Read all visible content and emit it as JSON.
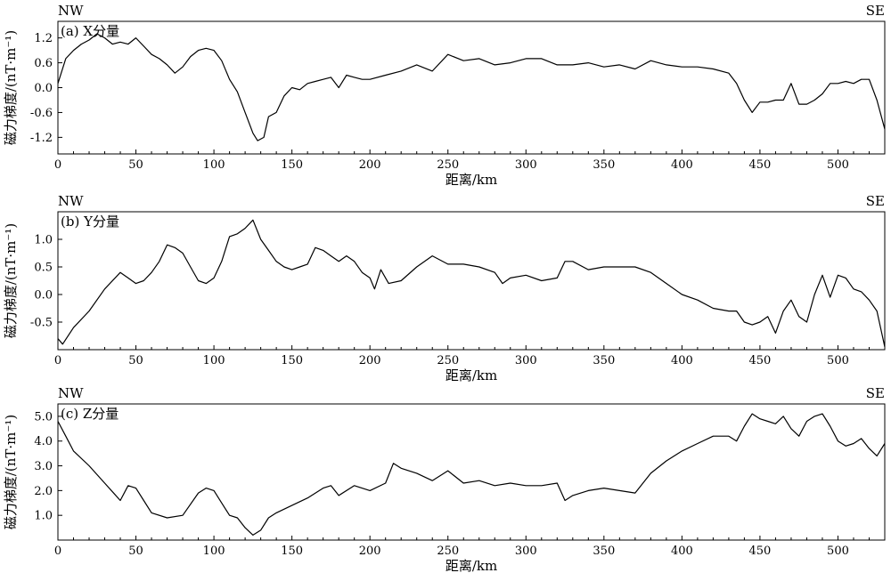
{
  "chart_data": [
    {
      "type": "line",
      "panel_label": "(a) X分量",
      "left_corner": "NW",
      "right_corner": "SE",
      "xlabel": "距离/km",
      "ylabel": "磁力梯度/(nT·m⁻¹)",
      "xlim": [
        0,
        530
      ],
      "ylim": [
        -1.6,
        1.6
      ],
      "xticks": [
        0,
        50,
        100,
        150,
        200,
        250,
        300,
        350,
        400,
        450,
        500
      ],
      "xtick_labels": [
        "0",
        "50",
        "100",
        "150",
        "200",
        "250",
        "300",
        "350",
        "400",
        "450",
        "500"
      ],
      "yticks": [
        -1.2,
        -0.6,
        0.0,
        0.6,
        1.2
      ],
      "ytick_labels": [
        "-1.2",
        "-0.6",
        "0.0",
        "0.6",
        "1.2"
      ],
      "line_color": "#000000",
      "series": [
        {
          "x": [
            0,
            5,
            10,
            15,
            20,
            25,
            30,
            35,
            40,
            45,
            50,
            55,
            60,
            65,
            70,
            75,
            80,
            85,
            90,
            95,
            100,
            105,
            110,
            115,
            120,
            125,
            128,
            132,
            135,
            140,
            145,
            150,
            155,
            160,
            165,
            170,
            175,
            180,
            185,
            190,
            195,
            200,
            210,
            220,
            230,
            240,
            250,
            260,
            270,
            280,
            290,
            300,
            310,
            320,
            330,
            340,
            350,
            360,
            370,
            380,
            390,
            400,
            410,
            420,
            430,
            435,
            440,
            445,
            450,
            455,
            460,
            465,
            470,
            475,
            480,
            485,
            490,
            495,
            500,
            505,
            510,
            515,
            520,
            525,
            530
          ],
          "y": [
            0.1,
            0.7,
            0.9,
            1.05,
            1.15,
            1.3,
            1.2,
            1.05,
            1.1,
            1.05,
            1.2,
            1.0,
            0.8,
            0.7,
            0.55,
            0.35,
            0.5,
            0.75,
            0.9,
            0.95,
            0.9,
            0.65,
            0.2,
            -0.1,
            -0.6,
            -1.1,
            -1.28,
            -1.2,
            -0.7,
            -0.6,
            -0.2,
            0.0,
            -0.05,
            0.1,
            0.15,
            0.2,
            0.25,
            0.0,
            0.3,
            0.25,
            0.2,
            0.2,
            0.3,
            0.4,
            0.55,
            0.4,
            0.8,
            0.65,
            0.7,
            0.55,
            0.6,
            0.7,
            0.7,
            0.55,
            0.55,
            0.6,
            0.5,
            0.55,
            0.45,
            0.65,
            0.55,
            0.5,
            0.5,
            0.45,
            0.35,
            0.1,
            -0.3,
            -0.6,
            -0.35,
            -0.35,
            -0.3,
            -0.3,
            0.1,
            -0.4,
            -0.4,
            -0.3,
            -0.15,
            0.1,
            0.1,
            0.15,
            0.1,
            0.2,
            0.2,
            -0.3,
            -1.0
          ]
        }
      ]
    },
    {
      "type": "line",
      "panel_label": "(b) Y分量",
      "left_corner": "NW",
      "right_corner": "SE",
      "xlabel": "距离/km",
      "ylabel": "磁力梯度/(nT·m⁻¹)",
      "xlim": [
        0,
        530
      ],
      "ylim": [
        -1.0,
        1.5
      ],
      "xticks": [
        0,
        50,
        100,
        150,
        200,
        250,
        300,
        350,
        400,
        450,
        500
      ],
      "xtick_labels": [
        "0",
        "50",
        "100",
        "150",
        "200",
        "250",
        "300",
        "350",
        "400",
        "450",
        "500"
      ],
      "yticks": [
        -0.5,
        0.0,
        0.5,
        1.0
      ],
      "ytick_labels": [
        "-0.5",
        "0.0",
        "0.5",
        "1.0"
      ],
      "line_color": "#000000",
      "series": [
        {
          "x": [
            0,
            3,
            10,
            20,
            30,
            40,
            45,
            50,
            55,
            60,
            65,
            70,
            75,
            80,
            85,
            90,
            95,
            100,
            105,
            110,
            115,
            120,
            125,
            130,
            135,
            140,
            145,
            150,
            155,
            160,
            165,
            170,
            175,
            180,
            185,
            190,
            195,
            200,
            203,
            207,
            212,
            220,
            230,
            240,
            250,
            260,
            270,
            280,
            285,
            290,
            300,
            310,
            320,
            325,
            330,
            340,
            350,
            360,
            370,
            380,
            390,
            400,
            410,
            420,
            430,
            435,
            440,
            445,
            450,
            455,
            460,
            465,
            470,
            475,
            480,
            485,
            490,
            495,
            500,
            505,
            510,
            515,
            520,
            525,
            530
          ],
          "y": [
            -0.8,
            -0.9,
            -0.6,
            -0.3,
            0.1,
            0.4,
            0.3,
            0.2,
            0.25,
            0.4,
            0.6,
            0.9,
            0.85,
            0.75,
            0.5,
            0.25,
            0.2,
            0.3,
            0.6,
            1.05,
            1.1,
            1.2,
            1.35,
            1.0,
            0.8,
            0.6,
            0.5,
            0.45,
            0.5,
            0.55,
            0.85,
            0.8,
            0.7,
            0.6,
            0.7,
            0.6,
            0.4,
            0.3,
            0.1,
            0.45,
            0.2,
            0.25,
            0.5,
            0.7,
            0.55,
            0.55,
            0.5,
            0.4,
            0.2,
            0.3,
            0.35,
            0.25,
            0.3,
            0.6,
            0.6,
            0.45,
            0.5,
            0.5,
            0.5,
            0.4,
            0.2,
            0.0,
            -0.1,
            -0.25,
            -0.3,
            -0.3,
            -0.5,
            -0.55,
            -0.5,
            -0.4,
            -0.7,
            -0.3,
            -0.1,
            -0.4,
            -0.5,
            0.0,
            0.35,
            -0.05,
            0.35,
            0.3,
            0.1,
            0.05,
            -0.1,
            -0.3,
            -0.95
          ]
        }
      ]
    },
    {
      "type": "line",
      "panel_label": "(c) Z分量",
      "left_corner": "NW",
      "right_corner": "SE",
      "xlabel": "距离/km",
      "ylabel": "磁力梯度/(nT·m⁻¹)",
      "xlim": [
        0,
        530
      ],
      "ylim": [
        0.0,
        5.5
      ],
      "xticks": [
        0,
        50,
        100,
        150,
        200,
        250,
        300,
        350,
        400,
        450,
        500
      ],
      "xtick_labels": [
        "0",
        "50",
        "100",
        "150",
        "200",
        "250",
        "300",
        "350",
        "400",
        "450",
        "500"
      ],
      "yticks": [
        1.0,
        2.0,
        3.0,
        4.0,
        5.0
      ],
      "ytick_labels": [
        "1.0",
        "2.0",
        "3.0",
        "4.0",
        "5.0"
      ],
      "line_color": "#000000",
      "series": [
        {
          "x": [
            0,
            5,
            10,
            20,
            30,
            40,
            45,
            50,
            55,
            60,
            70,
            80,
            90,
            95,
            100,
            105,
            110,
            115,
            120,
            125,
            130,
            135,
            140,
            150,
            160,
            170,
            175,
            180,
            190,
            200,
            210,
            215,
            220,
            230,
            240,
            250,
            260,
            270,
            280,
            290,
            300,
            310,
            320,
            325,
            330,
            340,
            350,
            360,
            370,
            380,
            390,
            400,
            410,
            420,
            430,
            435,
            440,
            445,
            450,
            455,
            460,
            465,
            470,
            475,
            480,
            485,
            490,
            495,
            500,
            505,
            510,
            515,
            520,
            525,
            530
          ],
          "y": [
            4.8,
            4.2,
            3.6,
            3.0,
            2.3,
            1.6,
            2.2,
            2.1,
            1.6,
            1.1,
            0.9,
            1.0,
            1.9,
            2.1,
            2.0,
            1.5,
            1.0,
            0.9,
            0.5,
            0.2,
            0.4,
            0.9,
            1.1,
            1.4,
            1.7,
            2.1,
            2.2,
            1.8,
            2.2,
            2.0,
            2.3,
            3.1,
            2.9,
            2.7,
            2.4,
            2.8,
            2.3,
            2.4,
            2.2,
            2.3,
            2.2,
            2.2,
            2.3,
            1.6,
            1.8,
            2.0,
            2.1,
            2.0,
            1.9,
            2.7,
            3.2,
            3.6,
            3.9,
            4.2,
            4.2,
            4.0,
            4.6,
            5.1,
            4.9,
            4.8,
            4.7,
            5.0,
            4.5,
            4.2,
            4.8,
            5.0,
            5.1,
            4.6,
            4.0,
            3.8,
            3.9,
            4.1,
            3.7,
            3.4,
            3.9
          ]
        }
      ]
    }
  ]
}
